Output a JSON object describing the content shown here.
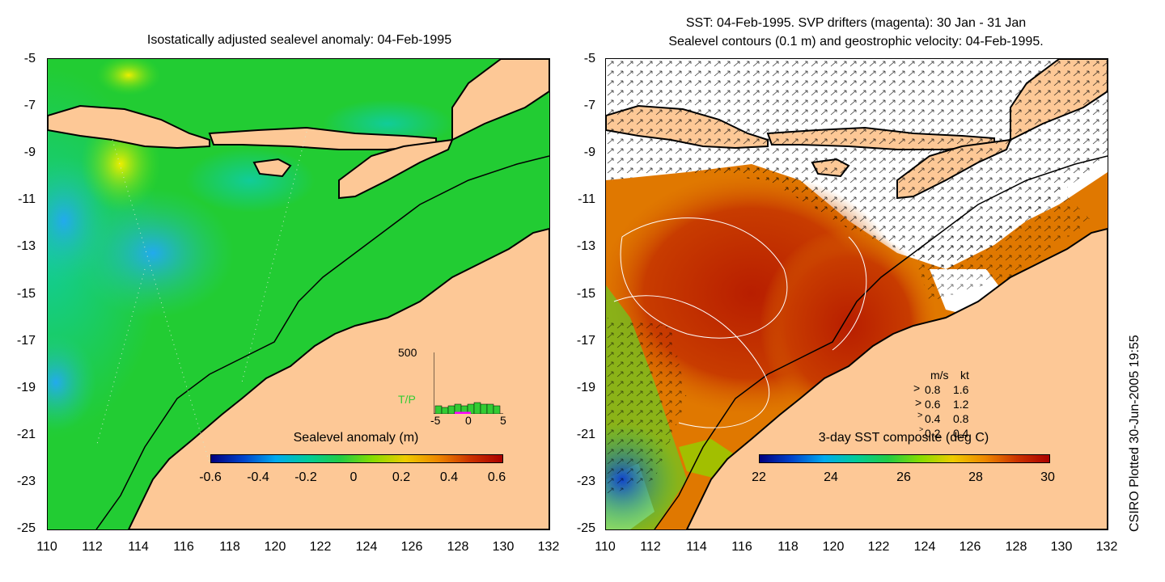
{
  "left_panel": {
    "title": "Isostatically adjusted sealevel anomaly: 04-Feb-1995",
    "colorbar": {
      "label": "Sealevel anomaly (m)",
      "ticks": [
        "-0.6",
        "-0.4",
        "-0.2",
        "0",
        "0.2",
        "0.4",
        "0.6"
      ]
    },
    "inset": {
      "ymax_label": "500",
      "series_label": "T/P",
      "x_ticks": [
        "-5",
        "0",
        "5"
      ],
      "bar_color": "#33cc33",
      "marker_color": "#ff00ff"
    }
  },
  "right_panel": {
    "title_line1": "SST: 04-Feb-1995. SVP drifters (magenta): 30 Jan - 31 Jan",
    "title_line2": "Sealevel contours (0.1 m) and geostrophic velocity: 04-Feb-1995.",
    "colorbar": {
      "label": "3-day SST composite (deg C)",
      "ticks": [
        "22",
        "24",
        "26",
        "28",
        "30"
      ]
    },
    "velocity_legend": {
      "header_ms": "m/s",
      "header_kt": "kt",
      "rows": [
        {
          "ms": "0.8",
          "kt": "1.6"
        },
        {
          "ms": "0.6",
          "kt": "1.2"
        },
        {
          "ms": "0.4",
          "kt": "0.8"
        },
        {
          "ms": "0.2",
          "kt": "0.4"
        }
      ]
    }
  },
  "axes": {
    "y_ticks": [
      "-5",
      "-7",
      "-9",
      "-11",
      "-13",
      "-15",
      "-17",
      "-19",
      "-21",
      "-23",
      "-25"
    ],
    "x_ticks": [
      "110",
      "112",
      "114",
      "116",
      "118",
      "120",
      "122",
      "124",
      "126",
      "128",
      "130",
      "132"
    ]
  },
  "footer": {
    "credit": "CSIRO Plotted 30-Jun-2005 19:55"
  },
  "colors": {
    "land": "#fdc896",
    "ocean_anomaly": "#22cc22",
    "sst_warm": "#c83c00",
    "coast": "#000000"
  }
}
